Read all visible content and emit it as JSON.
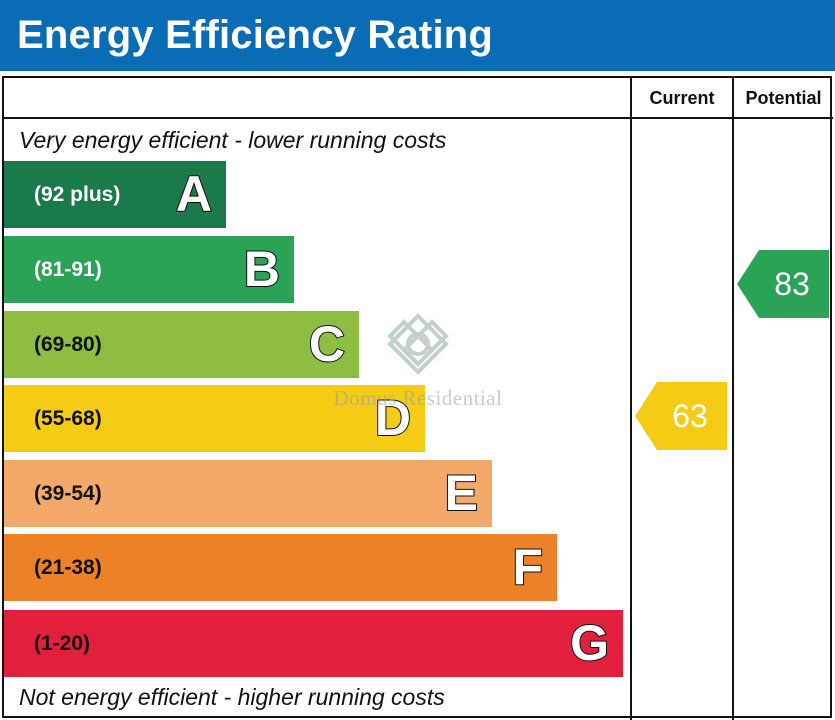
{
  "header": {
    "title": "Energy Efficiency Rating"
  },
  "columns": {
    "current": "Current",
    "potential": "Potential"
  },
  "notes": {
    "top": "Very energy efficient - lower running costs",
    "bottom": "Not energy efficient - higher running costs"
  },
  "watermark": {
    "text": "Domus Residential"
  },
  "colors": {
    "header": "#0a6cb5"
  },
  "chart_data": {
    "type": "bar",
    "title": "Energy Efficiency Rating",
    "bands": [
      {
        "letter": "A",
        "range": "(92 plus)",
        "color": "#1a7a4c",
        "range_color": "#ffffff",
        "min": 92,
        "max": 100
      },
      {
        "letter": "B",
        "range": "(81-91)",
        "color": "#2aa357",
        "range_color": "#ffffff",
        "min": 81,
        "max": 91
      },
      {
        "letter": "C",
        "range": "(69-80)",
        "color": "#8dbd42",
        "range_color": "#111111",
        "min": 69,
        "max": 80
      },
      {
        "letter": "D",
        "range": "(55-68)",
        "color": "#f4cb15",
        "range_color": "#111111",
        "min": 55,
        "max": 68
      },
      {
        "letter": "E",
        "range": "(39-54)",
        "color": "#f2a96a",
        "range_color": "#111111",
        "min": 39,
        "max": 54
      },
      {
        "letter": "F",
        "range": "(21-38)",
        "color": "#ec8127",
        "range_color": "#111111",
        "min": 21,
        "max": 38
      },
      {
        "letter": "G",
        "range": "(1-20)",
        "color": "#e1203d",
        "range_color": "#111111",
        "min": 1,
        "max": 20
      }
    ],
    "series": [
      {
        "name": "Current",
        "value": 63,
        "band": "D",
        "color": "#f4cb15"
      },
      {
        "name": "Potential",
        "value": 83,
        "band": "B",
        "color": "#2aa357"
      }
    ]
  }
}
